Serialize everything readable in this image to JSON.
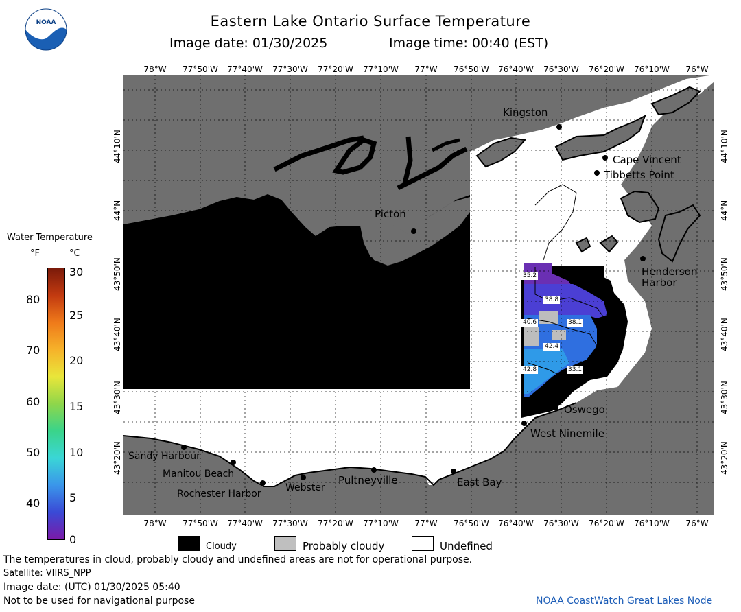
{
  "header": {
    "title": "Eastern Lake Ontario Surface Temperature",
    "image_date": "Image date: 01/30/2025",
    "image_time": "Image time: 00:40 (EST)"
  },
  "logo": {
    "text": "NOAA"
  },
  "axes": {
    "lon_labels": [
      "78°W",
      "77°50'W",
      "77°40'W",
      "77°30'W",
      "77°20'W",
      "77°10'W",
      "77°W",
      "76°50'W",
      "76°40'W",
      "76°30'W",
      "76°20'W",
      "76°10'W",
      "76°W"
    ],
    "lat_labels": [
      "44°10'N",
      "44°N",
      "43°50'N",
      "43°40'N",
      "43°30'N",
      "43°20'N"
    ]
  },
  "places": [
    {
      "name": "Kingston"
    },
    {
      "name": "Cape Vincent"
    },
    {
      "name": "Tibbetts Point"
    },
    {
      "name": "Picton"
    },
    {
      "name": "Henderson"
    },
    {
      "name": "Harbor"
    },
    {
      "name": "Oswego"
    },
    {
      "name": "West Ninemile"
    },
    {
      "name": "Sandy Harbour"
    },
    {
      "name": "Manitou Beach"
    },
    {
      "name": "Rochester Harbor"
    },
    {
      "name": "Webster"
    },
    {
      "name": "Pultneyville"
    },
    {
      "name": "East Bay"
    }
  ],
  "temperature_labels": [
    "35.2",
    "38.8",
    "40.6",
    "38.1",
    "42.4",
    "42.8",
    "33.1"
  ],
  "colorbar": {
    "title": "Water Temperature",
    "unit_f": "°F",
    "unit_c": "°C",
    "f_ticks": [
      "80",
      "70",
      "60",
      "50",
      "40"
    ],
    "c_ticks": [
      "30",
      "25",
      "20",
      "15",
      "10",
      "5",
      "0"
    ]
  },
  "legend": {
    "cloudy": "Cloudy",
    "probably_cloudy": "Probably cloudy",
    "undefined": "Undefined",
    "colors": {
      "cloudy": "#000000",
      "probably_cloudy": "#bfbfbf",
      "undefined": "#ffffff",
      "land": "#6f6f6f"
    }
  },
  "footer": {
    "line1": "The temperatures in cloud, probably cloudy and undefined areas are not for operational purpose.",
    "line2": "Satellite: VIIRS_NPP",
    "line3": "Image date: (UTC) 01/30/2025  05:40",
    "line4": "Not to be used for navigational purpose",
    "credit": "NOAA CoastWatch Great Lakes Node"
  }
}
